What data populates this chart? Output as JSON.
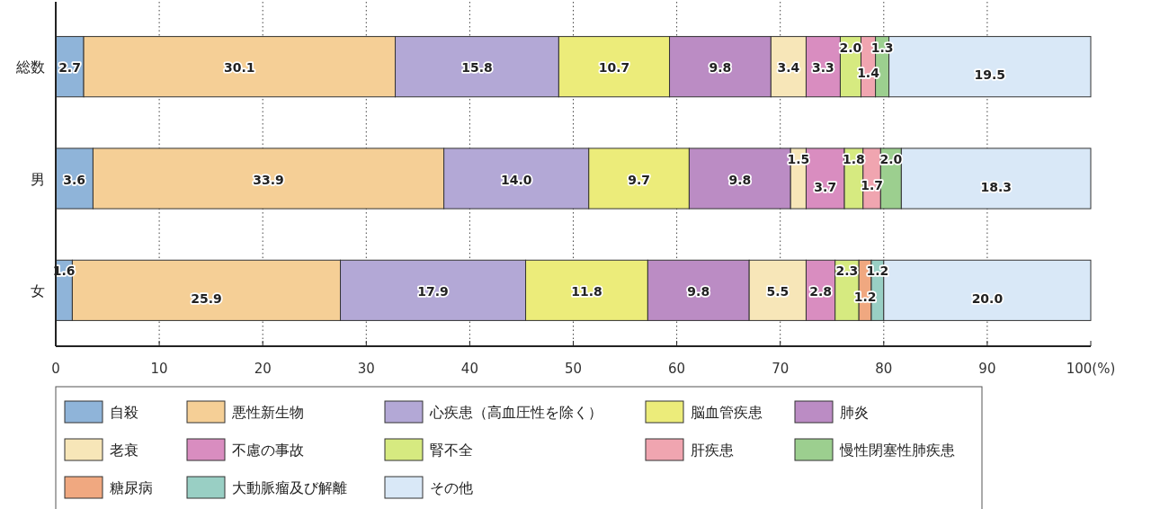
{
  "chart_data": {
    "type": "bar",
    "orientation": "horizontal",
    "stacked": true,
    "categories": [
      "総数",
      "男",
      "女"
    ],
    "series": [
      {
        "name": "自殺",
        "color": "#8fb4d9",
        "values": [
          2.7,
          3.6,
          1.6
        ],
        "value_labels": [
          "2.7",
          "3.6",
          "1.6"
        ]
      },
      {
        "name": "悪性新生物",
        "color": "#f5cf96",
        "values": [
          30.1,
          33.9,
          25.9
        ],
        "value_labels": [
          "30.1",
          "33.9",
          "25.9"
        ]
      },
      {
        "name": "心疾患（高血圧性を除く）",
        "color": "#b3a8d6",
        "values": [
          15.8,
          14.0,
          17.9
        ],
        "value_labels": [
          "15.8",
          "14.0",
          "17.9"
        ]
      },
      {
        "name": "脳血管疾患",
        "color": "#ecec7a",
        "values": [
          10.7,
          9.7,
          11.8
        ],
        "value_labels": [
          "10.7",
          "9.7",
          "11.8"
        ]
      },
      {
        "name": "肺炎",
        "color": "#bb8cc4",
        "values": [
          9.8,
          9.8,
          9.8
        ],
        "value_labels": [
          "9.8",
          "9.8",
          "9.8"
        ]
      },
      {
        "name": "老衰",
        "color": "#f7e6b8",
        "values": [
          3.4,
          1.5,
          5.5
        ],
        "value_labels": [
          "3.4",
          "1.5",
          "5.5"
        ]
      },
      {
        "name": "不慮の事故",
        "color": "#d98dc0",
        "values": [
          3.3,
          3.7,
          2.8
        ],
        "value_labels": [
          "3.3",
          "3.7",
          "2.8"
        ]
      },
      {
        "name": "腎不全",
        "color": "#d6ea80",
        "values": [
          2.0,
          1.8,
          2.3
        ],
        "value_labels": [
          "2.0",
          "1.8",
          "2.3"
        ]
      },
      {
        "name": "肝疾患",
        "color": "#f0a5b0",
        "values": [
          1.4,
          1.7,
          null
        ],
        "value_labels": [
          "1.4",
          "1.7",
          null
        ]
      },
      {
        "name": "慢性閉塞性肺疾患",
        "color": "#9ccf8f",
        "values": [
          1.3,
          2.0,
          null
        ],
        "value_labels": [
          "1.3",
          "2.0",
          null
        ]
      },
      {
        "name": "糖尿病",
        "color": "#f0a880",
        "values": [
          null,
          null,
          1.2
        ],
        "value_labels": [
          null,
          null,
          "1.2"
        ]
      },
      {
        "name": "大動脈瘤及び解離",
        "color": "#99cfc4",
        "values": [
          null,
          null,
          1.2
        ],
        "value_labels": [
          null,
          null,
          "1.2"
        ]
      },
      {
        "name": "その他",
        "color": "#d9e8f7",
        "values": [
          19.5,
          18.3,
          20.0
        ],
        "value_labels": [
          "19.5",
          "18.3",
          "20.0"
        ]
      }
    ],
    "xlim": [
      0,
      100
    ],
    "xticks": [
      0,
      10,
      20,
      30,
      40,
      50,
      60,
      70,
      80,
      90,
      {
        "value": 100,
        "label": "100(%)"
      }
    ],
    "grid": "x",
    "legend": "bottom"
  }
}
